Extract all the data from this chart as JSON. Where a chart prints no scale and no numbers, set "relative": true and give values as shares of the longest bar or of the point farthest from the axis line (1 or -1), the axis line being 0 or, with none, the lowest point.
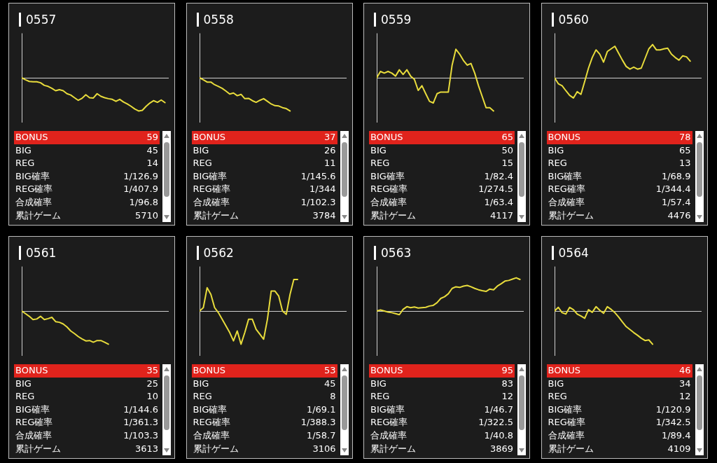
{
  "chart_data": [
    {
      "type": "line",
      "title": "0557",
      "relative": true,
      "color": "#e8dc3c",
      "categories": [
        null,
        null,
        null,
        null,
        null,
        null,
        null,
        null,
        null,
        null,
        null,
        null,
        null,
        null,
        null,
        null,
        null,
        null,
        null,
        null,
        null,
        null,
        null,
        null,
        null,
        null,
        null,
        null,
        null,
        null,
        null,
        null,
        null,
        null,
        null,
        null,
        null,
        null,
        null,
        null
      ],
      "values": [
        0,
        -0.06,
        -0.11,
        -0.12,
        -0.12,
        -0.15,
        -0.23,
        -0.26,
        -0.32,
        -0.39,
        -0.36,
        -0.39,
        -0.48,
        -0.52,
        -0.6,
        -0.68,
        -0.62,
        -0.51,
        -0.6,
        -0.61,
        -0.48,
        -0.56,
        -0.6,
        -0.63,
        -0.65,
        -0.71,
        -0.65,
        -0.73,
        -0.79,
        -0.86,
        -0.94,
        -1,
        -0.98,
        -0.86,
        -0.76,
        -0.69,
        -0.74,
        -0.67,
        -0.75,
        null
      ],
      "annotations": [
        "BONUS",
        "59",
        "BIG",
        "45",
        "REG",
        "14",
        "BIG確率",
        "1/126.9",
        "REG確率",
        "1/407.9",
        "合成確率",
        "1/96.8",
        "累計ゲーム",
        "5710"
      ]
    },
    {
      "type": "line",
      "title": "0558",
      "relative": true,
      "color": "#e8dc3c",
      "categories": [
        null,
        null,
        null,
        null,
        null,
        null,
        null,
        null,
        null,
        null,
        null,
        null,
        null,
        null,
        null,
        null,
        null,
        null,
        null,
        null,
        null,
        null,
        null,
        null,
        null,
        null,
        null,
        null,
        null,
        null,
        null,
        null,
        null,
        null,
        null,
        null,
        null,
        null,
        null,
        null
      ],
      "values": [
        0,
        -0.06,
        -0.13,
        -0.13,
        -0.21,
        -0.26,
        -0.32,
        -0.4,
        -0.49,
        -0.46,
        -0.54,
        -0.5,
        -0.63,
        -0.62,
        -0.69,
        -0.74,
        -0.68,
        -0.63,
        -0.71,
        -0.79,
        -0.84,
        -0.85,
        -0.9,
        -0.93,
        -1,
        null,
        null,
        null,
        null,
        null,
        null,
        null,
        null,
        null,
        null,
        null,
        null,
        null,
        null,
        null
      ],
      "annotations": [
        "BONUS",
        "37",
        "BIG",
        "26",
        "REG",
        "11",
        "BIG確率",
        "1/145.6",
        "REG確率",
        "1/344",
        "合成確率",
        "1/102.3",
        "累計ゲーム",
        "3784"
      ]
    },
    {
      "type": "line",
      "title": "0559",
      "relative": true,
      "color": "#e8dc3c",
      "categories": [
        null,
        null,
        null,
        null,
        null,
        null,
        null,
        null,
        null,
        null,
        null,
        null,
        null,
        null,
        null,
        null,
        null,
        null,
        null,
        null,
        null,
        null,
        null,
        null,
        null,
        null,
        null,
        null,
        null,
        null,
        null,
        null,
        null,
        null,
        null,
        null,
        null,
        null,
        null,
        null
      ],
      "values": [
        0,
        0.19,
        0.14,
        0.19,
        0.14,
        0.05,
        0.24,
        0.1,
        0.24,
        0.05,
        -0.05,
        -0.38,
        -0.24,
        -0.48,
        -0.71,
        -0.76,
        -0.48,
        -0.43,
        -0.43,
        -0.43,
        0.38,
        0.86,
        0.71,
        0.52,
        0.38,
        0.43,
        0.14,
        -0.24,
        -0.57,
        -0.9,
        -0.9,
        -1,
        null,
        null,
        null,
        null,
        null,
        null,
        null,
        null
      ],
      "annotations": [
        "BONUS",
        "65",
        "BIG",
        "50",
        "REG",
        "15",
        "BIG確率",
        "1/82.4",
        "REG確率",
        "1/274.5",
        "合成確率",
        "1/63.4",
        "累計ゲーム",
        "4117"
      ]
    },
    {
      "type": "line",
      "title": "0560",
      "relative": true,
      "color": "#e8dc3c",
      "categories": [
        null,
        null,
        null,
        null,
        null,
        null,
        null,
        null,
        null,
        null,
        null,
        null,
        null,
        null,
        null,
        null,
        null,
        null,
        null,
        null,
        null,
        null,
        null,
        null,
        null,
        null,
        null,
        null,
        null,
        null,
        null,
        null,
        null,
        null,
        null,
        null,
        null,
        null,
        null,
        null
      ],
      "values": [
        0,
        -0.18,
        -0.24,
        -0.39,
        -0.53,
        -0.61,
        -0.42,
        -0.5,
        -0.11,
        0.29,
        0.61,
        0.84,
        0.71,
        0.47,
        0.79,
        0.87,
        0.95,
        0.74,
        0.53,
        0.34,
        0.26,
        0.32,
        0.26,
        0.29,
        0.58,
        0.87,
        1,
        0.84,
        0.84,
        0.87,
        0.89,
        0.71,
        0.61,
        0.53,
        0.66,
        0.63,
        0.5,
        null,
        null,
        null
      ],
      "annotations": [
        "BONUS",
        "78",
        "BIG",
        "65",
        "REG",
        "13",
        "BIG確率",
        "1/68.9",
        "REG確率",
        "1/344.4",
        "合成確率",
        "1/57.4",
        "累計ゲーム",
        "4476"
      ]
    },
    {
      "type": "line",
      "title": "0561",
      "relative": true,
      "color": "#e8dc3c",
      "categories": [
        null,
        null,
        null,
        null,
        null,
        null,
        null,
        null,
        null,
        null,
        null,
        null,
        null,
        null,
        null,
        null,
        null,
        null,
        null,
        null,
        null,
        null,
        null,
        null,
        null,
        null,
        null,
        null,
        null,
        null,
        null,
        null,
        null,
        null,
        null,
        null,
        null,
        null,
        null,
        null
      ],
      "values": [
        0,
        -0.08,
        -0.16,
        -0.26,
        -0.24,
        -0.16,
        -0.26,
        -0.23,
        -0.19,
        -0.32,
        -0.34,
        -0.39,
        -0.48,
        -0.6,
        -0.68,
        -0.77,
        -0.84,
        -0.9,
        -0.89,
        -0.94,
        -0.89,
        -0.89,
        -0.94,
        -1,
        null,
        null,
        null,
        null,
        null,
        null,
        null,
        null,
        null,
        null,
        null,
        null,
        null,
        null,
        null,
        null
      ],
      "annotations": [
        "BONUS",
        "35",
        "BIG",
        "25",
        "REG",
        "10",
        "BIG確率",
        "1/144.6",
        "REG確率",
        "1/361.3",
        "合成確率",
        "1/103.3",
        "累計ゲーム",
        "3613"
      ]
    },
    {
      "type": "line",
      "title": "0562",
      "relative": true,
      "color": "#e8dc3c",
      "categories": [
        null,
        null,
        null,
        null,
        null,
        null,
        null,
        null,
        null,
        null,
        null,
        null,
        null,
        null,
        null,
        null,
        null,
        null,
        null,
        null,
        null,
        null,
        null,
        null,
        null,
        null,
        null,
        null,
        null,
        null,
        null,
        null,
        null,
        null,
        null,
        null,
        null,
        null,
        null,
        null
      ],
      "values": [
        0,
        0.1,
        0.7,
        0.5,
        0.1,
        -0.05,
        -0.25,
        -0.45,
        -0.65,
        -0.9,
        -0.6,
        -1,
        -0.65,
        -0.25,
        -0.25,
        -0.55,
        -0.7,
        -0.85,
        -0.25,
        0.6,
        0.6,
        0.45,
        0,
        -0.1,
        0.5,
        0.95,
        0.95,
        null,
        null,
        null,
        null,
        null,
        null,
        null,
        null,
        null,
        null,
        null,
        null,
        null
      ],
      "annotations": [
        "BONUS",
        "53",
        "BIG",
        "45",
        "REG",
        "8",
        "BIG確率",
        "1/69.1",
        "REG確率",
        "1/388.3",
        "合成確率",
        "1/58.7",
        "累計ゲーム",
        "3106"
      ]
    },
    {
      "type": "line",
      "title": "0563",
      "relative": true,
      "color": "#e8dc3c",
      "categories": [
        null,
        null,
        null,
        null,
        null,
        null,
        null,
        null,
        null,
        null,
        null,
        null,
        null,
        null,
        null,
        null,
        null,
        null,
        null,
        null,
        null,
        null,
        null,
        null,
        null,
        null,
        null,
        null,
        null,
        null,
        null,
        null,
        null,
        null,
        null,
        null,
        null,
        null,
        null,
        null
      ],
      "values": [
        0,
        0.03,
        0,
        -0.03,
        -0.05,
        -0.08,
        -0.11,
        0.05,
        0.13,
        0.1,
        0.12,
        0.09,
        0.1,
        0.11,
        0.15,
        0.17,
        0.25,
        0.38,
        0.43,
        0.52,
        0.68,
        0.73,
        0.71,
        0.75,
        0.77,
        0.73,
        0.68,
        0.64,
        0.61,
        0.59,
        0.66,
        0.64,
        0.75,
        0.82,
        0.9,
        0.92,
        0.96,
        1,
        0.95,
        null
      ],
      "annotations": [
        "BONUS",
        "95",
        "BIG",
        "83",
        "REG",
        "12",
        "BIG確率",
        "1/46.7",
        "REG確率",
        "1/322.5",
        "合成確率",
        "1/40.8",
        "累計ゲーム",
        "3869"
      ]
    },
    {
      "type": "line",
      "title": "0564",
      "relative": true,
      "color": "#e8dc3c",
      "categories": [
        null,
        null,
        null,
        null,
        null,
        null,
        null,
        null,
        null,
        null,
        null,
        null,
        null,
        null,
        null,
        null,
        null,
        null,
        null,
        null,
        null,
        null,
        null,
        null,
        null,
        null,
        null,
        null,
        null,
        null,
        null,
        null,
        null,
        null,
        null,
        null,
        null,
        null,
        null,
        null
      ],
      "values": [
        0,
        0.11,
        -0.05,
        -0.09,
        0.11,
        0.04,
        -0.09,
        -0.15,
        -0.22,
        0.04,
        -0.04,
        0.13,
        0.02,
        -0.07,
        0.13,
        0.05,
        -0.05,
        -0.18,
        -0.33,
        -0.47,
        -0.56,
        -0.65,
        -0.73,
        -0.82,
        -0.89,
        -0.87,
        -1,
        null,
        null,
        null,
        null,
        null,
        null,
        null,
        null,
        null,
        null,
        null,
        null,
        null
      ],
      "annotations": [
        "BONUS",
        "46",
        "BIG",
        "34",
        "REG",
        "12",
        "BIG確率",
        "1/120.9",
        "REG確率",
        "1/342.5",
        "合成確率",
        "1/89.4",
        "累計ゲーム",
        "4109"
      ]
    }
  ]
}
